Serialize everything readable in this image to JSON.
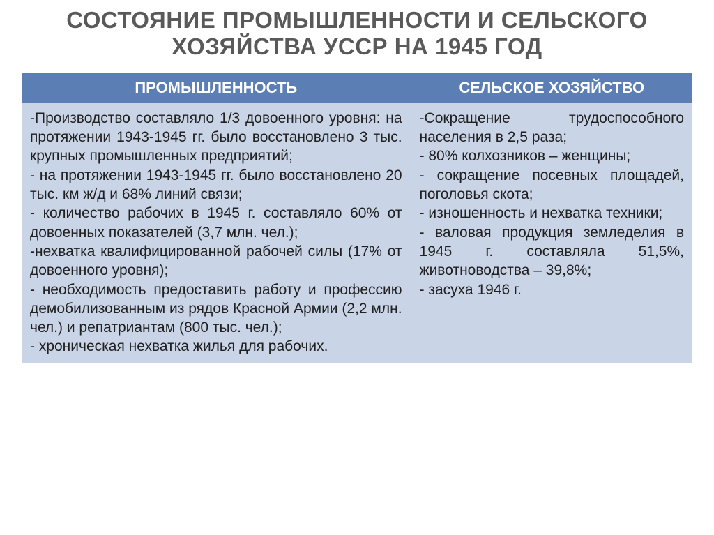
{
  "title": "СОСТОЯНИЕ ПРОМЫШЛЕННОСТИ И СЕЛЬСКОГО ХОЗЯЙСТВА УССР НА 1945 ГОД",
  "table": {
    "headers": [
      "ПРОМЫШЛЕННОСТЬ",
      "СЕЛЬСКОЕ ХОЗЯЙСТВО"
    ],
    "col_widths_pct": [
      58,
      42
    ],
    "header_bg": "#5b7fb4",
    "header_fg": "#ffffff",
    "cell_bg": "#cad4e7",
    "cell_fg": "#202020",
    "border_color": "#ffffff",
    "header_fontsize": 22,
    "cell_fontsize": 21,
    "rows": [
      [
        "-Производство составляло 1/3 довоенного уровня: на протяжении 1943-1945 гг. было восстановлено 3 тыс. крупных промышленных предприятий;\n- на протяжении 1943-1945 гг. было восстановлено 20 тыс. км ж/д и 68% линий связи;\n- количество рабочих в 1945 г. составляло 60% от довоенных показателей (3,7 млн. чел.);\n-нехватка квалифицированной рабочей силы (17% от довоенного уровня);\n- необходимость предоставить работу и профессию демобилизованным из рядов Красной Армии (2,2 млн. чел.) и репатриантам (800 тыс. чел.);\n- хроническая нехватка жилья для рабочих.",
        "-Сокращение трудоспособного населения в 2,5 раза;\n- 80% колхозников – женщины;\n- сокращение посевных площадей, поголовья скота;\n- изношенность и нехватка техники;\n- валовая продукция земледелия в 1945 г. составляла 51,5%, животноводства – 39,8%;\n- засуха 1946 г."
      ]
    ]
  },
  "title_color": "#595959",
  "title_fontsize": 33,
  "background_color": "#ffffff"
}
